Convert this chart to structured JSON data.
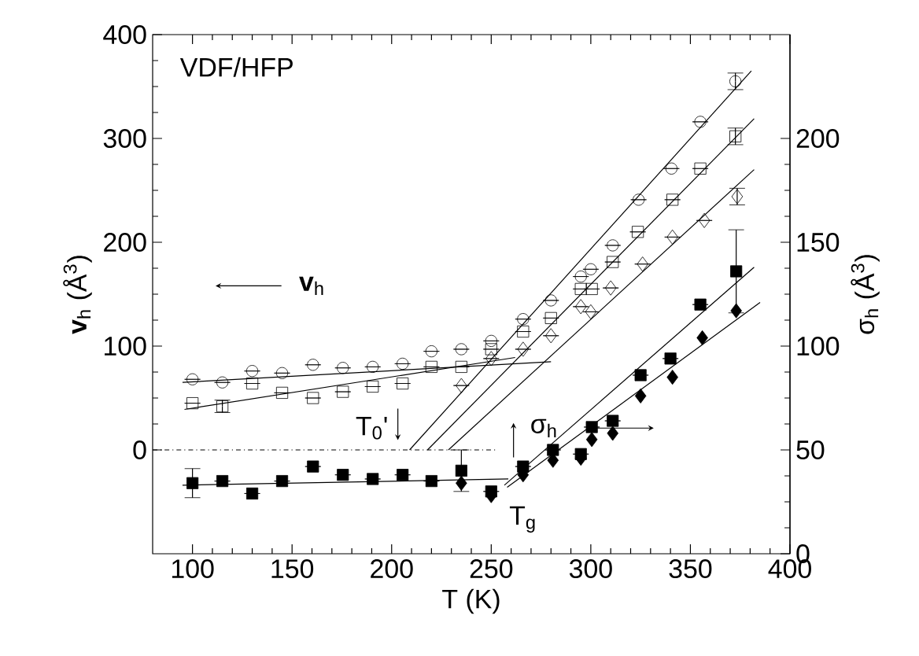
{
  "chart_data": {
    "type": "scatter",
    "xlabel": "T (K)",
    "ylabel": "**v**$_{h}$ (Å$^{3}$)",
    "y2label": "σ$_{h}$ (Å$^{3}$)",
    "xlim": [
      80,
      400
    ],
    "xticks": [
      100,
      150,
      200,
      250,
      300,
      350,
      400
    ],
    "ylim": [
      -100,
      400
    ],
    "yticks": [
      0,
      100,
      200,
      300,
      400
    ],
    "y2lim": [
      0,
      250
    ],
    "y2ticks": [
      0,
      50,
      100,
      150,
      200
    ],
    "annotations": [
      "VDF/HFP",
      "**v**$_{h}$",
      "σ$_{h}$",
      "T$_{0}$'",
      "T$_{g}$"
    ],
    "series": [
      {
        "marker": "circle",
        "color": "#000000",
        "x": [
          100,
          115,
          130,
          145,
          160.5,
          175.5,
          190.5,
          205.5,
          220,
          235,
          250,
          266,
          280,
          295,
          300,
          311,
          324,
          340.5,
          355,
          372.6
        ],
        "values": [
          68,
          65,
          76,
          74,
          82,
          79,
          80,
          83,
          95,
          97,
          105,
          126,
          144,
          167,
          174,
          197,
          241,
          271,
          316,
          355
        ],
        "errors": [
          null,
          null,
          null,
          null,
          null,
          null,
          null,
          null,
          null,
          null,
          null,
          null,
          null,
          null,
          null,
          null,
          null,
          null,
          null,
          8
        ]
      },
      {
        "marker": "square",
        "color": "#000000",
        "x": [
          100,
          115,
          130,
          145,
          160.5,
          175.5,
          190.5,
          205.5,
          220,
          235,
          250,
          266,
          280,
          295,
          300.5,
          311,
          323.6,
          341,
          355,
          372.6
        ],
        "values": [
          45,
          42,
          64,
          55,
          50,
          56,
          61,
          64,
          80,
          80,
          97,
          114,
          127,
          155,
          155,
          181,
          210,
          241,
          271,
          302
        ],
        "errors": [
          null,
          6,
          null,
          null,
          null,
          null,
          null,
          null,
          null,
          null,
          null,
          null,
          null,
          null,
          null,
          null,
          null,
          null,
          null,
          8
        ]
      },
      {
        "marker": "diamond",
        "color": "#000000",
        "x": [
          235,
          250,
          266,
          280,
          295,
          300,
          310,
          326,
          341,
          357,
          373.5
        ],
        "values": [
          62,
          88,
          97,
          110,
          138,
          133,
          156,
          179,
          205,
          221,
          244
        ],
        "errors": [
          null,
          null,
          null,
          null,
          null,
          null,
          null,
          null,
          null,
          null,
          8
        ]
      },
      {
        "marker": "square",
        "axis": "y2",
        "color": "#000000",
        "x": [
          100,
          115,
          130,
          145,
          160.5,
          175.5,
          190.5,
          205.5,
          220,
          235,
          250,
          266,
          281,
          295,
          300.5,
          311,
          325,
          340,
          355,
          373
        ],
        "values": [
          34,
          35,
          29,
          35,
          42,
          38,
          36,
          38,
          35,
          40,
          30,
          42,
          50,
          48,
          61,
          64,
          86,
          94,
          120,
          136
        ],
        "errors": [
          7,
          null,
          null,
          null,
          null,
          null,
          null,
          null,
          null,
          10,
          null,
          null,
          null,
          null,
          null,
          null,
          null,
          null,
          null,
          20
        ]
      },
      {
        "marker": "diamond",
        "axis": "y2",
        "color": "#000000",
        "x": [
          235,
          250,
          266,
          281,
          295,
          300.5,
          311,
          325,
          341,
          356,
          373
        ],
        "values": [
          34,
          28,
          38,
          45,
          46,
          55,
          58,
          76,
          85,
          104,
          117
        ]
      },
      {
        "type": "line",
        "line_style": "dashed",
        "color": "#000000",
        "x": [
          80,
          253
        ],
        "values": [
          0,
          0
        ]
      },
      {
        "type": "line",
        "color": "#000000",
        "x": [
          95,
          280
        ],
        "values": [
          65,
          85
        ]
      },
      {
        "type": "line",
        "color": "#000000",
        "x": [
          96,
          262
        ],
        "values": [
          39,
          89
        ]
      },
      {
        "type": "line",
        "color": "#000000",
        "x": [
          209,
          380.6
        ],
        "values": [
          0,
          365
        ]
      },
      {
        "type": "line",
        "color": "#000000",
        "x": [
          218,
          382
        ],
        "values": [
          0,
          319
        ]
      },
      {
        "type": "line",
        "color": "#000000",
        "x": [
          228.5,
          382
        ],
        "values": [
          0,
          270
        ]
      },
      {
        "type": "line",
        "axis": "y2",
        "color": "#000000",
        "x": [
          95,
          258.6
        ],
        "values": [
          33,
          36
        ]
      },
      {
        "type": "line",
        "axis": "y2",
        "color": "#000000",
        "x": [
          256.6,
          382
        ],
        "values": [
          33,
          138
        ]
      },
      {
        "type": "line",
        "axis": "y2",
        "color": "#000000",
        "x": [
          258,
          385
        ],
        "values": [
          32,
          121
        ]
      }
    ]
  }
}
